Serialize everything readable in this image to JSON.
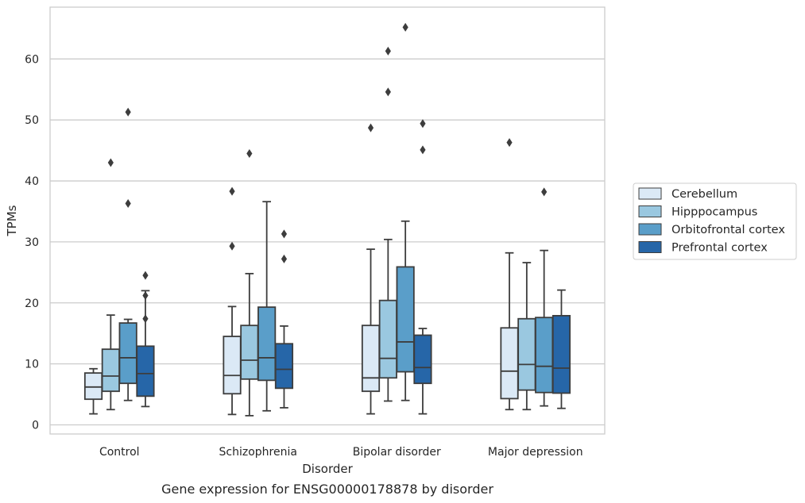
{
  "chart_data": {
    "type": "box",
    "title": "Gene expression for ENSG00000178878 by disorder",
    "xlabel": "Disorder",
    "ylabel": "TPMs",
    "ylim": [
      -1.5,
      68.5
    ],
    "yticks": [
      0,
      10,
      20,
      30,
      40,
      50,
      60
    ],
    "grid": true,
    "legend_position": "right",
    "categories": [
      "Control",
      "Schizophrenia",
      "Bipolar disorder",
      "Major depression"
    ],
    "series": [
      {
        "name": "Cerebellum",
        "color": "#dbe9f6",
        "boxes": [
          {
            "whisker_low": 1.8,
            "q1": 4.2,
            "median": 6.2,
            "q3": 8.5,
            "whisker_high": 9.2,
            "outliers": []
          },
          {
            "whisker_low": 1.7,
            "q1": 5.1,
            "median": 8.1,
            "q3": 14.5,
            "whisker_high": 19.4,
            "outliers": [
              29.3,
              38.3
            ]
          },
          {
            "whisker_low": 1.8,
            "q1": 5.5,
            "median": 7.7,
            "q3": 16.3,
            "whisker_high": 28.8,
            "outliers": [
              48.7
            ]
          },
          {
            "whisker_low": 2.5,
            "q1": 4.3,
            "median": 8.8,
            "q3": 15.9,
            "whisker_high": 28.2,
            "outliers": [
              46.3
            ]
          }
        ]
      },
      {
        "name": "Hipppocampus",
        "color": "#9ac8e0",
        "boxes": [
          {
            "whisker_low": 2.5,
            "q1": 5.5,
            "median": 8.0,
            "q3": 12.4,
            "whisker_high": 18.0,
            "outliers": [
              43.0
            ]
          },
          {
            "whisker_low": 1.5,
            "q1": 7.5,
            "median": 10.6,
            "q3": 16.3,
            "whisker_high": 24.8,
            "outliers": [
              44.5
            ]
          },
          {
            "whisker_low": 3.9,
            "q1": 7.7,
            "median": 10.9,
            "q3": 20.4,
            "whisker_high": 30.4,
            "outliers": [
              54.6,
              61.3
            ]
          },
          {
            "whisker_low": 2.5,
            "q1": 5.7,
            "median": 9.9,
            "q3": 17.4,
            "whisker_high": 26.6,
            "outliers": []
          }
        ]
      },
      {
        "name": "Orbitofrontal cortex",
        "color": "#5a9ec9",
        "boxes": [
          {
            "whisker_low": 4.0,
            "q1": 6.8,
            "median": 11.0,
            "q3": 16.7,
            "whisker_high": 17.3,
            "outliers": [
              36.3,
              51.3
            ]
          },
          {
            "whisker_low": 2.3,
            "q1": 7.3,
            "median": 11.0,
            "q3": 19.3,
            "whisker_high": 36.6,
            "outliers": []
          },
          {
            "whisker_low": 4.0,
            "q1": 8.7,
            "median": 13.6,
            "q3": 25.9,
            "whisker_high": 33.4,
            "outliers": [
              65.2
            ]
          },
          {
            "whisker_low": 3.1,
            "q1": 5.3,
            "median": 9.6,
            "q3": 17.6,
            "whisker_high": 28.6,
            "outliers": [
              38.2
            ]
          }
        ]
      },
      {
        "name": "Prefrontal cortex",
        "color": "#2666a8",
        "boxes": [
          {
            "whisker_low": 3.0,
            "q1": 4.7,
            "median": 8.4,
            "q3": 12.9,
            "whisker_high": 22.0,
            "outliers": [
              17.4,
              21.2,
              24.5
            ]
          },
          {
            "whisker_low": 2.8,
            "q1": 6.0,
            "median": 9.1,
            "q3": 13.3,
            "whisker_high": 16.2,
            "outliers": [
              27.2,
              31.3
            ]
          },
          {
            "whisker_low": 1.8,
            "q1": 6.8,
            "median": 9.4,
            "q3": 14.7,
            "whisker_high": 15.8,
            "outliers": [
              45.1,
              49.4
            ]
          },
          {
            "whisker_low": 2.7,
            "q1": 5.2,
            "median": 9.3,
            "q3": 17.9,
            "whisker_high": 22.1,
            "outliers": []
          }
        ]
      }
    ]
  }
}
